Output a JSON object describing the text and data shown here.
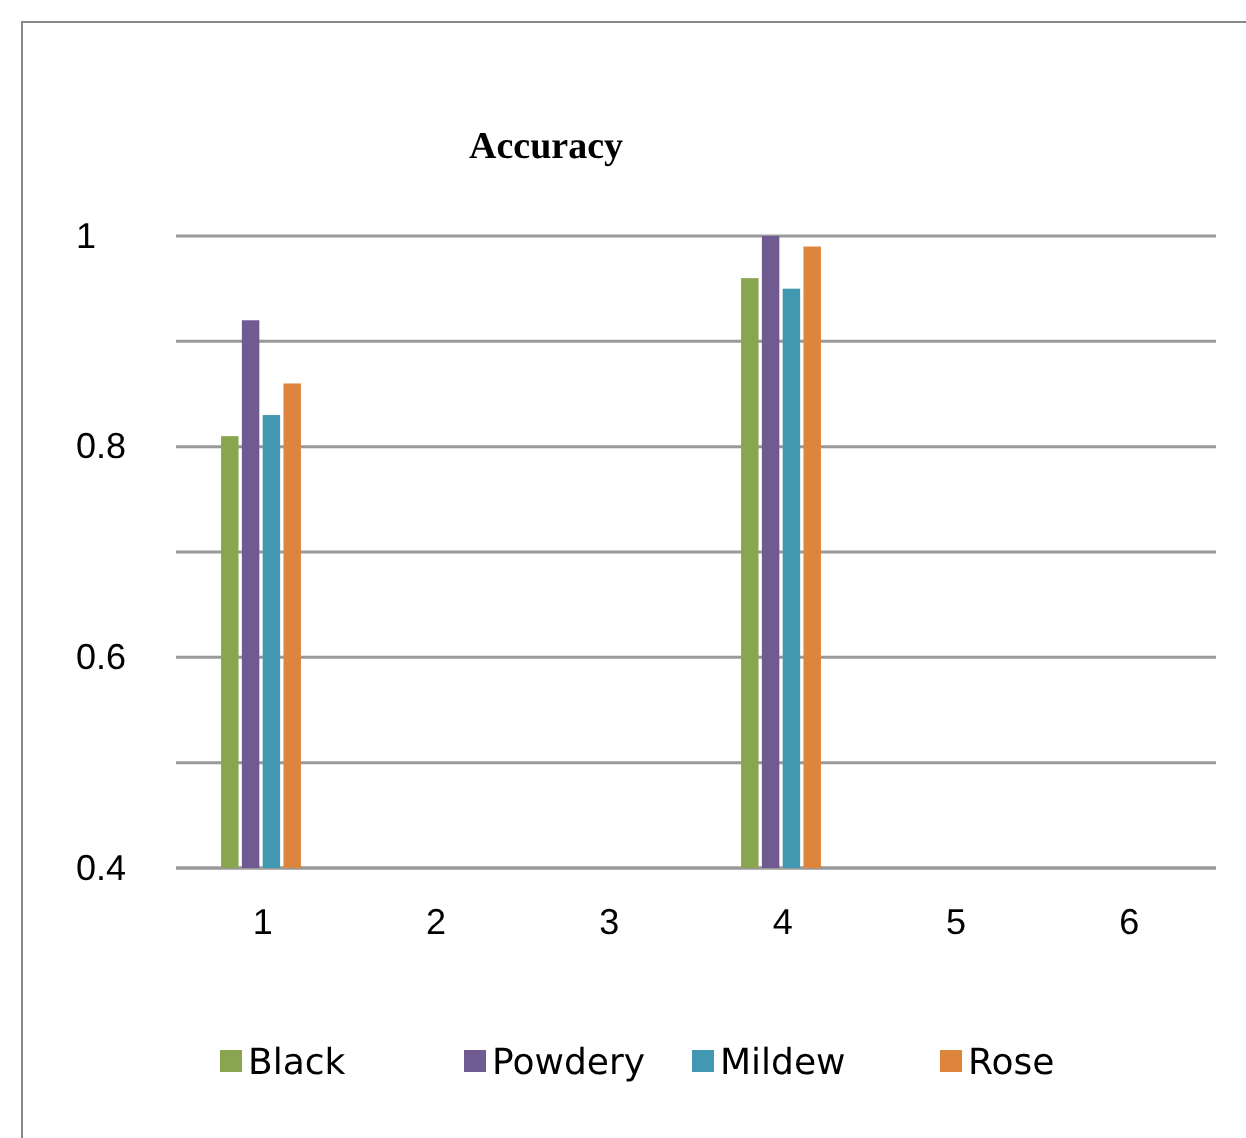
{
  "chart_data": {
    "type": "bar",
    "title": "Accuracy",
    "categories": [
      "1",
      "2",
      "3",
      "4",
      "5",
      "6"
    ],
    "series": [
      {
        "name": "Black",
        "color": "#8aa54f",
        "values": [
          0.81,
          null,
          null,
          0.96,
          null,
          null
        ]
      },
      {
        "name": "Powdery",
        "color": "#6f5a91",
        "values": [
          0.92,
          null,
          null,
          1.0,
          null,
          null
        ]
      },
      {
        "name": "Mildew",
        "color": "#4298b0",
        "values": [
          0.83,
          null,
          null,
          0.95,
          null,
          null
        ]
      },
      {
        "name": "Rose",
        "color": "#dd853c",
        "values": [
          0.86,
          null,
          null,
          0.99,
          null,
          null
        ]
      }
    ],
    "ylim": [
      0.4,
      1.0
    ],
    "yticks": [
      0.4,
      {
        "value": 0.5,
        "label": null
      },
      0.6,
      {
        "value": 0.7,
        "label": null
      },
      0.8,
      {
        "value": 0.9,
        "label": null
      },
      1
    ],
    "grid": "y",
    "legend": "bottom"
  }
}
